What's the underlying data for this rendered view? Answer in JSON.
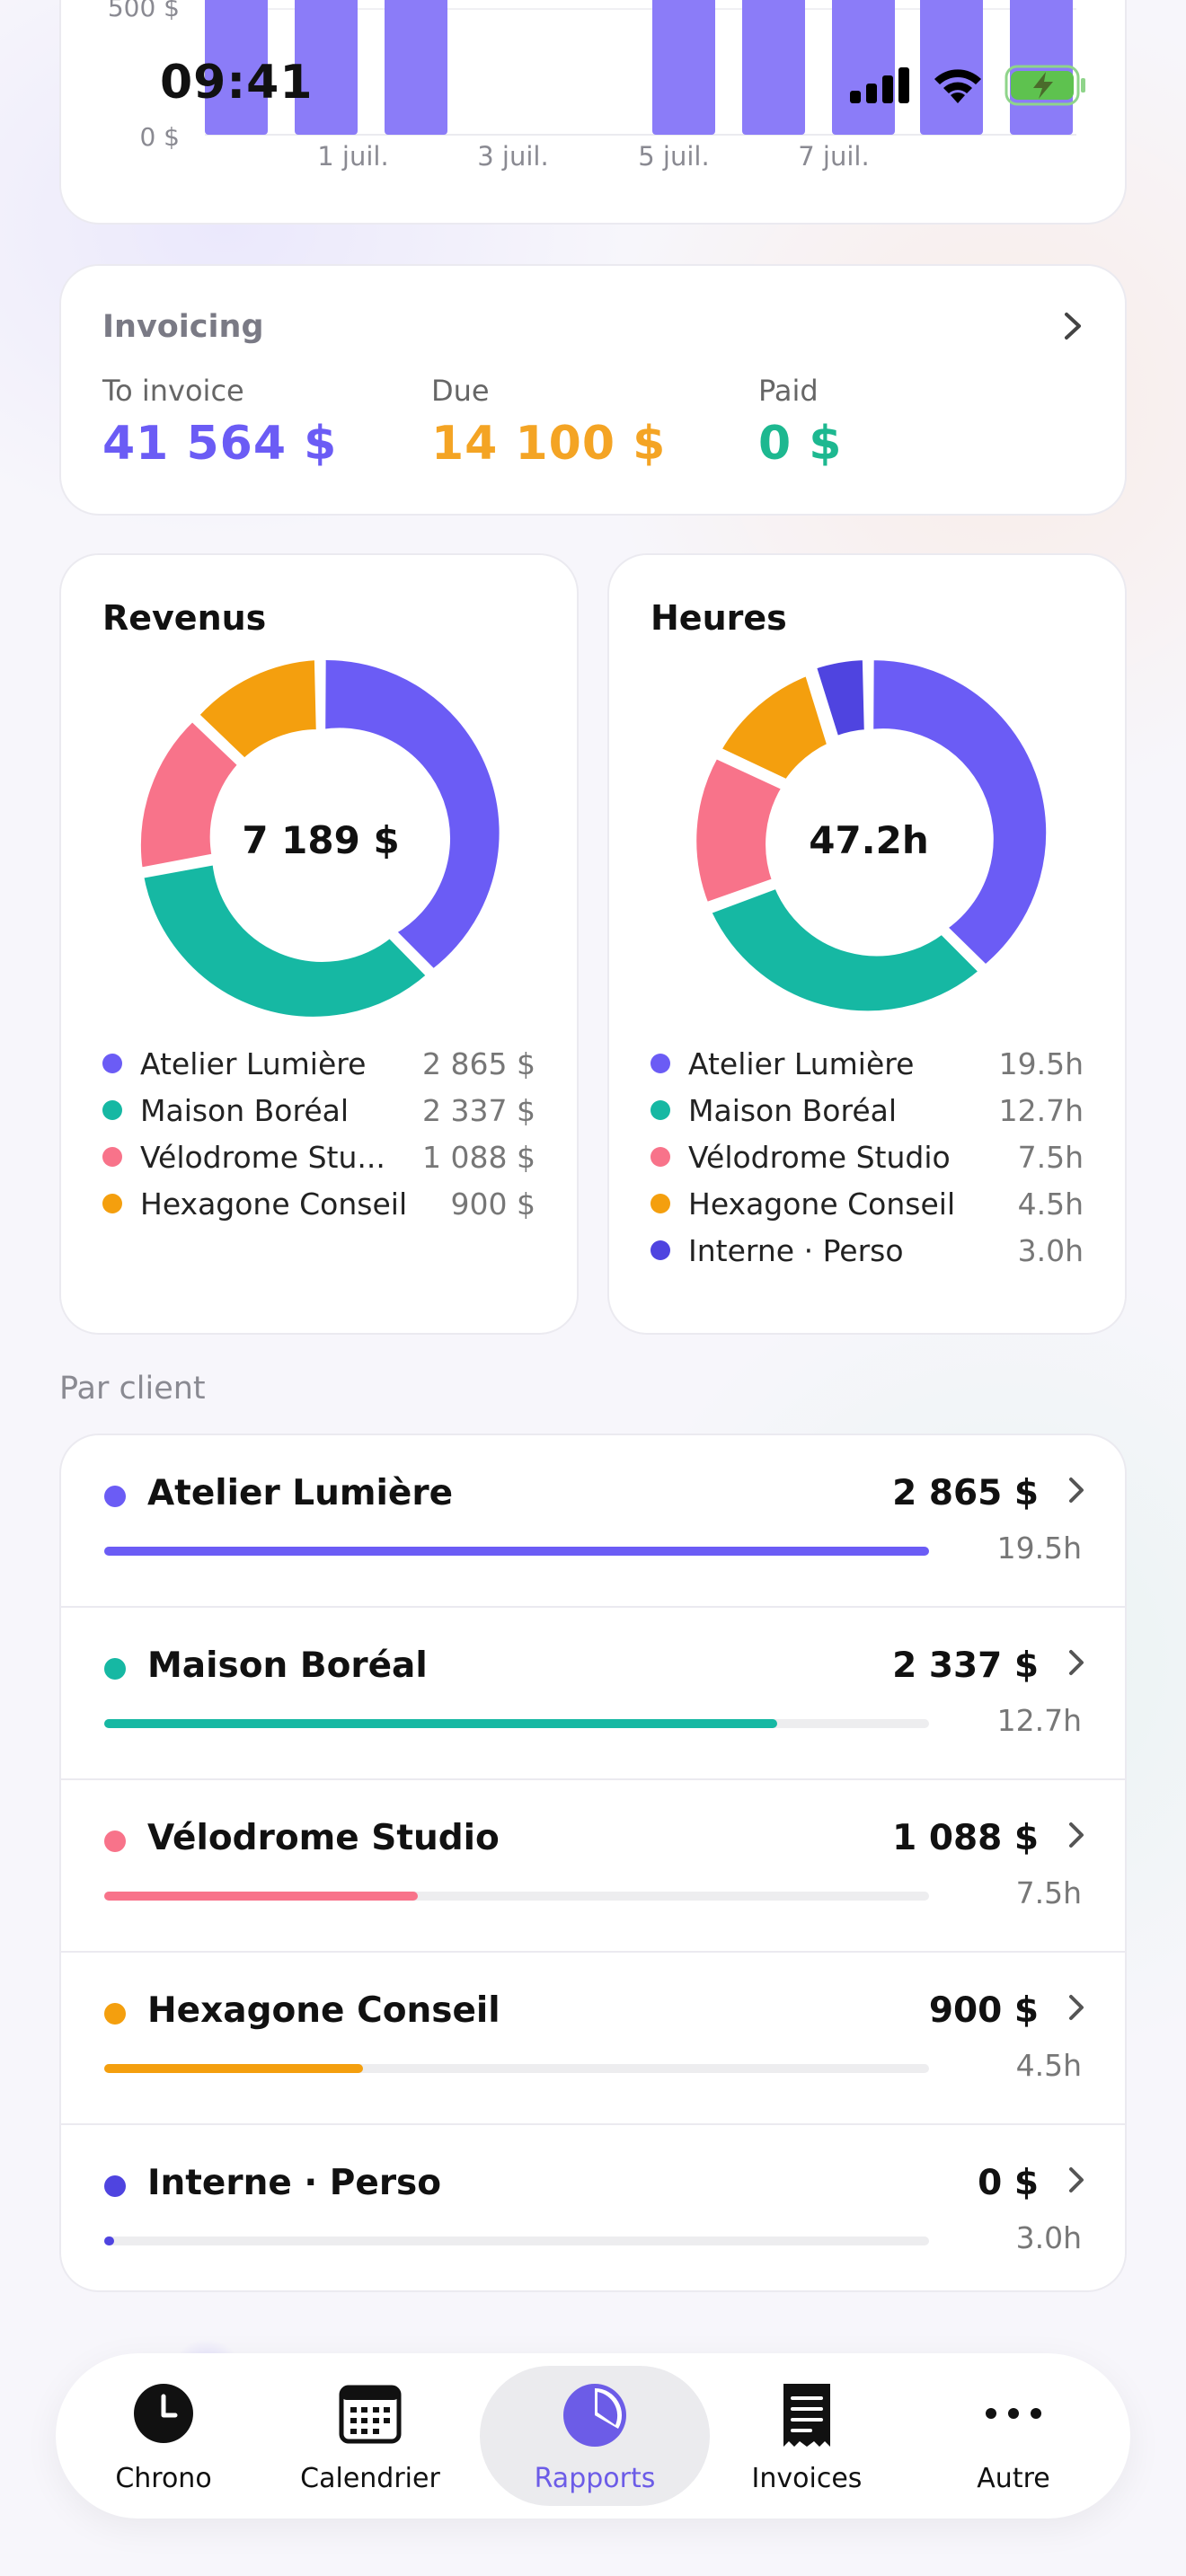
{
  "status_bar": {
    "time": "09:41"
  },
  "top_chart": {
    "y_ticks": [
      "500 $",
      "0 $"
    ],
    "x_ticks": [
      "1 juil.",
      "3 juil.",
      "5 juil.",
      "7 juil."
    ],
    "bar_color": "#8b7cf8"
  },
  "invoicing": {
    "title": "Invoicing",
    "items": [
      {
        "label": "To invoice",
        "value": "41 564 $",
        "color": "#6b5cf5"
      },
      {
        "label": "Due",
        "value": "14 100 $",
        "color": "#f4a424"
      },
      {
        "label": "Paid",
        "value": "0 $",
        "color": "#1db890"
      }
    ]
  },
  "revenus": {
    "title": "Revenus",
    "total": "7 189 $",
    "legend": [
      {
        "name": "Atelier Lumière",
        "value": "2 865 $",
        "color": "#6b5cf5"
      },
      {
        "name": "Maison Boréal",
        "value": "2 337 $",
        "color": "#16b8a3"
      },
      {
        "name": "Vélodrome Stu...",
        "value": "1 088 $",
        "color": "#f8738a"
      },
      {
        "name": "Hexagone Conseil",
        "value": "900 $",
        "color": "#f49f0e"
      }
    ]
  },
  "heures": {
    "title": "Heures",
    "total": "47.2h",
    "legend": [
      {
        "name": "Atelier Lumière",
        "value": "19.5h",
        "color": "#6b5cf5"
      },
      {
        "name": "Maison Boréal",
        "value": "12.7h",
        "color": "#16b8a3"
      },
      {
        "name": "Vélodrome Studio",
        "value": "7.5h",
        "color": "#f8738a"
      },
      {
        "name": "Hexagone Conseil",
        "value": "4.5h",
        "color": "#f49f0e"
      },
      {
        "name": "Interne · Perso",
        "value": "3.0h",
        "color": "#4f44e0"
      }
    ]
  },
  "par_client": {
    "label": "Par client",
    "clients": [
      {
        "name": "Atelier Lumière",
        "amount": "2 865 $",
        "hours": "19.5h",
        "progress": 1.0,
        "color": "#6b5cf5"
      },
      {
        "name": "Maison Boréal",
        "amount": "2 337 $",
        "hours": "12.7h",
        "progress": 0.816,
        "color": "#16b8a3"
      },
      {
        "name": "Vélodrome Studio",
        "amount": "1 088 $",
        "hours": "7.5h",
        "progress": 0.38,
        "color": "#f8738a"
      },
      {
        "name": "Hexagone Conseil",
        "amount": "900 $",
        "hours": "4.5h",
        "progress": 0.314,
        "color": "#f49f0e"
      },
      {
        "name": "Interne · Perso",
        "amount": "0 $",
        "hours": "3.0h",
        "progress": 0.012,
        "color": "#4f44e0"
      }
    ]
  },
  "tab_bar": {
    "tabs": [
      {
        "label": "Chrono",
        "icon": "clock-icon"
      },
      {
        "label": "Calendrier",
        "icon": "calendar-icon"
      },
      {
        "label": "Rapports",
        "icon": "pie-chart-icon",
        "active": true
      },
      {
        "label": "Invoices",
        "icon": "receipt-icon"
      },
      {
        "label": "Autre",
        "icon": "more-icon"
      }
    ]
  }
}
